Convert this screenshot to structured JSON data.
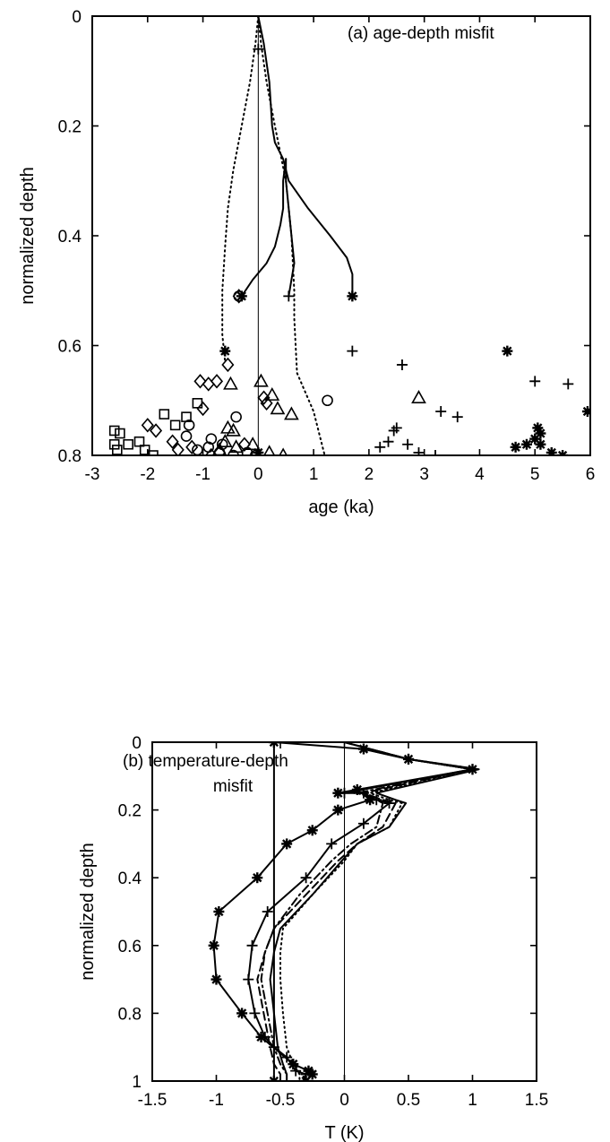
{
  "chart_data": [
    {
      "type": "scatter",
      "title": "(a) age-depth misfit",
      "xlabel": "age (ka)",
      "ylabel": "normalized depth",
      "xlim": [
        -3,
        6
      ],
      "ylim": [
        0,
        0.8
      ],
      "y_inverted": true,
      "x_ticks": [
        "-3",
        "-2",
        "-1",
        "0",
        "1",
        "2",
        "3",
        "4",
        "5",
        "6"
      ],
      "y_ticks": [
        "0",
        "0.2",
        "0.4",
        "0.6",
        "0.8"
      ],
      "grid": false,
      "lines": [
        {
          "style": "solid",
          "x": [
            0,
            0.1,
            0.2,
            0.25,
            0.3,
            0.45,
            0.5,
            0.55,
            0.9,
            1.3,
            1.6,
            1.7,
            1.7
          ],
          "y": [
            0,
            0.05,
            0.12,
            0.2,
            0.23,
            0.26,
            0.28,
            0.3,
            0.35,
            0.4,
            0.44,
            0.47,
            0.51
          ]
        },
        {
          "style": "solid",
          "x": [
            0.5,
            0.5,
            0.55,
            0.6,
            0.65,
            0.6,
            0.55
          ],
          "y": [
            0.26,
            0.3,
            0.35,
            0.4,
            0.45,
            0.48,
            0.51
          ]
        },
        {
          "style": "solid",
          "x": [
            0.5,
            0.45,
            0.45,
            0.4,
            0.3,
            0.15,
            -0.1,
            -0.3
          ],
          "y": [
            0.26,
            0.3,
            0.35,
            0.38,
            0.42,
            0.45,
            0.48,
            0.51
          ]
        },
        {
          "style": "dotted",
          "x": [
            0,
            -0.05,
            -0.15,
            -0.3,
            -0.45,
            -0.55,
            -0.6,
            -0.65,
            -0.65,
            -0.6
          ],
          "y": [
            0,
            0.05,
            0.12,
            0.2,
            0.28,
            0.35,
            0.42,
            0.5,
            0.58,
            0.63
          ]
        },
        {
          "style": "dotted",
          "x": [
            0,
            0.05,
            0.15,
            0.3,
            0.5,
            0.6,
            0.65,
            0.65,
            0.7,
            1.0,
            1.1,
            1.2
          ],
          "y": [
            0,
            0.05,
            0.12,
            0.2,
            0.3,
            0.4,
            0.5,
            0.55,
            0.65,
            0.72,
            0.76,
            0.8
          ]
        }
      ],
      "series": [
        {
          "marker": "asterisk",
          "x": [
            1.7,
            -0.6,
            4.5,
            5.95,
            5.05,
            5.1,
            5.0,
            4.65,
            4.85,
            5.1,
            5.3,
            5.5,
            0.0,
            -0.3
          ],
          "y": [
            0.51,
            0.61,
            0.61,
            0.72,
            0.75,
            0.76,
            0.77,
            0.785,
            0.78,
            0.78,
            0.795,
            0.8,
            0.795,
            0.51
          ]
        },
        {
          "marker": "plus",
          "x": [
            0.55,
            1.7,
            2.6,
            5.0,
            5.6,
            3.3,
            3.6,
            2.45,
            2.5,
            2.2,
            2.35,
            2.7,
            2.9,
            3.2,
            0.0
          ],
          "y": [
            0.51,
            0.61,
            0.635,
            0.665,
            0.67,
            0.72,
            0.73,
            0.755,
            0.75,
            0.785,
            0.775,
            0.78,
            0.795,
            0.8,
            0.06
          ]
        },
        {
          "marker": "triangle",
          "x": [
            2.9,
            -0.5,
            0.05,
            0.6,
            0.25,
            0.35,
            -0.55,
            -0.45,
            -0.6,
            -0.1,
            0.2,
            0.45,
            -0.7,
            -0.4
          ],
          "y": [
            0.695,
            0.67,
            0.665,
            0.725,
            0.69,
            0.715,
            0.75,
            0.755,
            0.775,
            0.78,
            0.795,
            0.8,
            0.79,
            0.785
          ]
        },
        {
          "marker": "circle",
          "x": [
            -0.35,
            1.25,
            -0.4,
            -0.85,
            -1.25,
            -1.3,
            -1.1,
            -0.65,
            -0.9,
            -0.7,
            -0.45,
            -0.2,
            -0.05
          ],
          "y": [
            0.51,
            0.7,
            0.73,
            0.77,
            0.745,
            0.765,
            0.79,
            0.78,
            0.785,
            0.795,
            0.8,
            0.795,
            0.8
          ]
        },
        {
          "marker": "diamond",
          "x": [
            -0.35,
            -1.05,
            -0.9,
            -0.75,
            -0.55,
            -1.0,
            -2.0,
            -1.85,
            -1.55,
            -1.45,
            -1.2,
            -0.85,
            -0.7,
            0.1,
            0.15,
            -0.25
          ],
          "y": [
            0.51,
            0.665,
            0.67,
            0.665,
            0.635,
            0.715,
            0.745,
            0.755,
            0.775,
            0.79,
            0.785,
            0.8,
            0.795,
            0.695,
            0.705,
            0.78
          ]
        },
        {
          "marker": "square",
          "x": [
            -2.6,
            -2.5,
            -2.6,
            -2.35,
            -2.15,
            -1.7,
            -1.5,
            -1.3,
            -1.1,
            -2.05,
            -2.55,
            -1.9
          ],
          "y": [
            0.755,
            0.76,
            0.78,
            0.78,
            0.775,
            0.725,
            0.745,
            0.73,
            0.705,
            0.79,
            0.79,
            0.8
          ]
        }
      ]
    },
    {
      "type": "line",
      "title": "(b) temperature-depth misfit",
      "annotation_lines": [
        "(b) temperature-depth",
        "misfit"
      ],
      "xlabel": "T (K)",
      "ylabel": "normalized depth",
      "xlim": [
        -1.5,
        1.5
      ],
      "ylim": [
        0,
        1
      ],
      "y_inverted": true,
      "x_ticks": [
        "-1.5",
        "-1",
        "-0.5",
        "0",
        "0.5",
        "1",
        "1.5"
      ],
      "y_ticks": [
        "0",
        "0.2",
        "0.4",
        "0.6",
        "0.8",
        "1"
      ],
      "grid": false,
      "series": [
        {
          "style": "solid",
          "marker": "asterisk",
          "x": [
            -0.55,
            -0.55,
            0.15,
            0.5,
            1.0,
            -0.05,
            0.1,
            0.2,
            -0.05,
            -0.25,
            -0.45,
            -0.68,
            -0.98,
            -1.02,
            -1.0,
            -0.8,
            -0.65,
            -0.4,
            -0.28,
            -0.25,
            -0.3
          ],
          "y": [
            1.0,
            0.0,
            0.02,
            0.05,
            0.08,
            0.15,
            0.14,
            0.17,
            0.2,
            0.26,
            0.3,
            0.4,
            0.5,
            0.6,
            0.7,
            0.8,
            0.87,
            0.95,
            0.97,
            0.98,
            1.0
          ]
        },
        {
          "style": "solid",
          "marker": "plus",
          "x": [
            0.15,
            0.5,
            1.0,
            0.0,
            0.15,
            0.25,
            0.35,
            0.15,
            -0.1,
            -0.3,
            -0.6,
            -0.72,
            -0.75,
            -0.7,
            -0.62,
            -0.55,
            -0.45,
            -0.38,
            -0.3,
            -0.32
          ],
          "y": [
            0.02,
            0.05,
            0.08,
            0.15,
            0.15,
            0.17,
            0.18,
            0.24,
            0.3,
            0.4,
            0.5,
            0.6,
            0.7,
            0.8,
            0.87,
            0.9,
            0.93,
            0.97,
            0.98,
            1.0
          ]
        },
        {
          "style": "dashdot",
          "x": [
            0.0,
            0.5,
            1.0,
            0.1,
            0.25,
            0.3,
            0.25,
            0.05,
            -0.1,
            -0.35,
            -0.55,
            -0.62,
            -0.65,
            -0.6,
            -0.55,
            -0.5,
            -0.45,
            -0.45
          ],
          "y": [
            0.0,
            0.05,
            0.08,
            0.15,
            0.17,
            0.18,
            0.25,
            0.3,
            0.35,
            0.45,
            0.55,
            0.62,
            0.7,
            0.8,
            0.9,
            0.95,
            0.98,
            1.0
          ]
        },
        {
          "style": "dashed",
          "x": [
            0.0,
            0.5,
            1.0,
            0.15,
            0.3,
            0.4,
            0.3,
            0.1,
            -0.05,
            -0.3,
            -0.55,
            -0.62,
            -0.68,
            -0.63,
            -0.58,
            -0.55,
            -0.5,
            -0.5
          ],
          "y": [
            0.0,
            0.05,
            0.08,
            0.15,
            0.17,
            0.18,
            0.25,
            0.3,
            0.35,
            0.45,
            0.55,
            0.62,
            0.7,
            0.8,
            0.9,
            0.95,
            0.98,
            1.0
          ]
        },
        {
          "style": "solid",
          "x": [
            0.0,
            0.5,
            1.05,
            0.25,
            0.4,
            0.48,
            0.35,
            0.1,
            -0.02,
            -0.25,
            -0.5,
            -0.55,
            -0.58,
            -0.55,
            -0.52,
            -0.48,
            -0.45,
            -0.45
          ],
          "y": [
            0.0,
            0.05,
            0.08,
            0.15,
            0.17,
            0.18,
            0.25,
            0.3,
            0.35,
            0.45,
            0.55,
            0.62,
            0.7,
            0.8,
            0.9,
            0.95,
            0.98,
            1.0
          ]
        },
        {
          "style": "dotted",
          "x": [
            0.0,
            0.5,
            1.05,
            0.2,
            0.35,
            0.45,
            0.35,
            0.1,
            0.0,
            -0.25,
            -0.48,
            -0.5,
            -0.5,
            -0.48,
            -0.45,
            -0.4,
            -0.35,
            -0.35
          ],
          "y": [
            0.0,
            0.05,
            0.08,
            0.15,
            0.17,
            0.18,
            0.25,
            0.3,
            0.35,
            0.45,
            0.55,
            0.62,
            0.7,
            0.8,
            0.9,
            0.95,
            0.98,
            1.0
          ]
        }
      ]
    }
  ]
}
